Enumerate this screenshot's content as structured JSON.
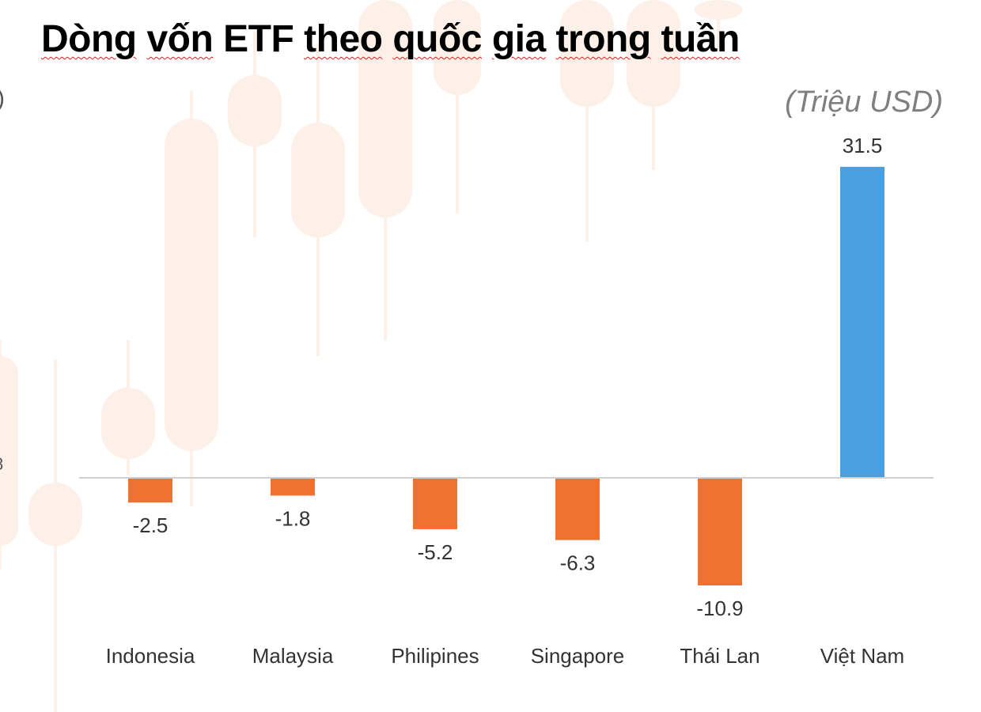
{
  "title_words": [
    "Dòng",
    "vốn",
    "ETF",
    "theo",
    "quốc",
    "gia",
    "trong",
    "tuần"
  ],
  "unit": "(Triệu USD)",
  "edge_fragments": {
    "paren": ")",
    "digit": "8"
  },
  "colors": {
    "positive": "#4a9fdf",
    "negative": "#ef7230",
    "axis": "#d0d0d0",
    "label": "#333333",
    "watermark": "#fdf0e8"
  },
  "chart_data": {
    "type": "bar",
    "title": "Dòng vốn ETF theo quốc gia trong tuần",
    "ylabel": "(Triệu USD)",
    "categories": [
      "Indonesia",
      "Malaysia",
      "Philipines",
      "Singapore",
      "Thái Lan",
      "Việt Nam"
    ],
    "values": [
      -2.5,
      -1.8,
      -5.2,
      -6.3,
      -10.9,
      31.5
    ],
    "value_labels": [
      "-2.5",
      "-1.8",
      "-5.2",
      "-6.3",
      "-10.9",
      "31.5"
    ],
    "ylim": [
      -11,
      31.5
    ],
    "grid": false,
    "legend": "none"
  }
}
